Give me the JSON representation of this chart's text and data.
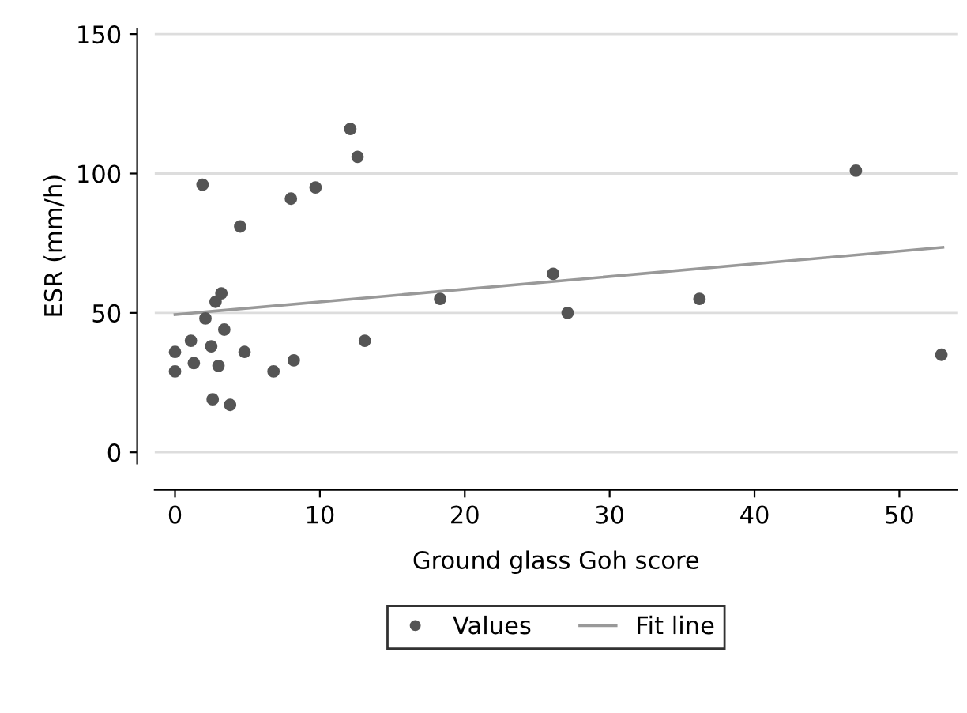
{
  "chart_data": {
    "type": "scatter",
    "xlabel": "Ground glass Goh score",
    "ylabel": "ESR (mm/h)",
    "xlim": [
      -1.4,
      54
    ],
    "ylim": [
      -4,
      152
    ],
    "xticks": [
      0,
      10,
      20,
      30,
      40,
      50
    ],
    "yticks": [
      0,
      50,
      100,
      150
    ],
    "grid": "y",
    "legend": "bottom",
    "series": [
      {
        "name": "Values",
        "marker": "circle",
        "color": "#555555",
        "x": [
          0,
          0,
          1.1,
          1.3,
          1.9,
          2.1,
          2.5,
          2.6,
          2.8,
          3.0,
          3.2,
          3.4,
          3.8,
          4.5,
          4.8,
          6.8,
          8.0,
          8.2,
          9.7,
          12.1,
          12.6,
          13.1,
          18.3,
          26.1,
          27.1,
          36.2,
          47.0,
          52.9
        ],
        "values": [
          36,
          29,
          40,
          32,
          96,
          48,
          38,
          19,
          54,
          31,
          57,
          44,
          17,
          81,
          36,
          29,
          91,
          33,
          95,
          116,
          106,
          40,
          55,
          64,
          50,
          55,
          101,
          35
        ]
      },
      {
        "name": "Fit line",
        "type": "line",
        "color": "#999999",
        "x": [
          0,
          53
        ],
        "values": [
          49.4,
          73.5
        ]
      }
    ]
  }
}
